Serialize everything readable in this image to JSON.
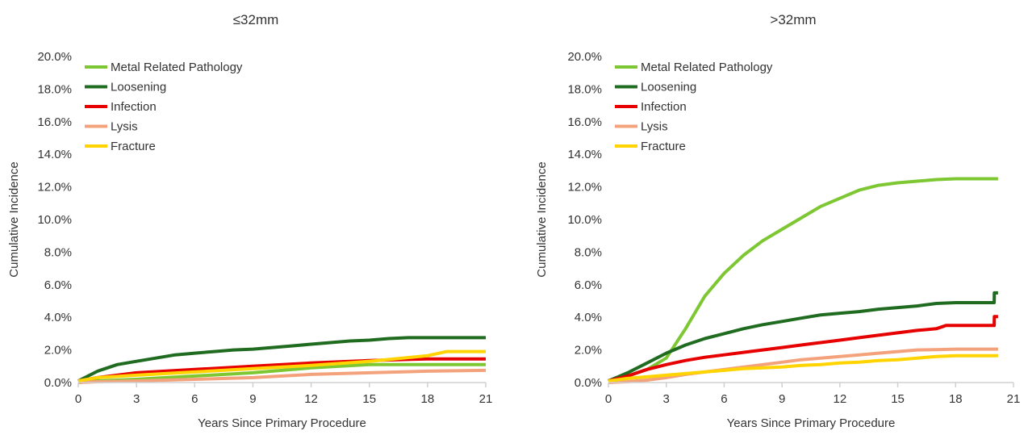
{
  "chart_data": [
    {
      "type": "line",
      "title": "≤32mm",
      "xlabel": "Years Since Primary Procedure",
      "ylabel": "Cumulative Incidence",
      "xlim": [
        0,
        21
      ],
      "ylim": [
        0,
        20
      ],
      "xticks": [
        "0",
        "3",
        "6",
        "9",
        "12",
        "15",
        "18",
        "21"
      ],
      "yticks": [
        "0.0%",
        "2.0%",
        "4.0%",
        "6.0%",
        "8.0%",
        "10.0%",
        "12.0%",
        "14.0%",
        "16.0%",
        "18.0%",
        "20.0%"
      ],
      "grid": false,
      "legend": "top-left",
      "series": [
        {
          "name": "Metal Related Pathology",
          "color": "#7DC832",
          "x": [
            0,
            1,
            3,
            6,
            9,
            12,
            15,
            18,
            21
          ],
          "y": [
            0.0,
            0.1,
            0.2,
            0.4,
            0.6,
            0.9,
            1.1,
            1.1,
            1.1
          ]
        },
        {
          "name": "Loosening",
          "color": "#1F6B1F",
          "x": [
            0,
            1,
            2,
            3,
            4,
            5,
            6,
            7,
            8,
            9,
            10,
            11,
            12,
            13,
            14,
            15,
            16,
            17,
            18,
            19,
            20,
            21
          ],
          "y": [
            0.1,
            0.7,
            1.1,
            1.3,
            1.5,
            1.7,
            1.8,
            1.9,
            2.0,
            2.05,
            2.15,
            2.25,
            2.35,
            2.45,
            2.55,
            2.6,
            2.7,
            2.75,
            2.75,
            2.75,
            2.75,
            2.75
          ]
        },
        {
          "name": "Infection",
          "color": "#E60000",
          "x": [
            0,
            1,
            3,
            6,
            9,
            12,
            15,
            18,
            21
          ],
          "y": [
            0.1,
            0.3,
            0.6,
            0.8,
            1.0,
            1.2,
            1.35,
            1.45,
            1.45
          ]
        },
        {
          "name": "Lysis",
          "color": "#F4A27C",
          "x": [
            0,
            1,
            3,
            6,
            9,
            12,
            15,
            18,
            21
          ],
          "y": [
            0.0,
            0.05,
            0.1,
            0.2,
            0.3,
            0.5,
            0.6,
            0.7,
            0.75
          ]
        },
        {
          "name": "Fracture",
          "color": "#FFD400",
          "x": [
            0,
            1,
            3,
            6,
            9,
            12,
            15,
            18,
            19,
            21
          ],
          "y": [
            0.1,
            0.3,
            0.45,
            0.65,
            0.85,
            1.05,
            1.3,
            1.65,
            1.9,
            1.9
          ]
        }
      ]
    },
    {
      "type": "line",
      "title": ">32mm",
      "xlabel": "Years Since Primary Procedure",
      "ylabel": "Cumulative Incidence",
      "xlim": [
        0,
        21
      ],
      "ylim": [
        0,
        20
      ],
      "xticks": [
        "0",
        "3",
        "6",
        "9",
        "12",
        "15",
        "18",
        "21"
      ],
      "yticks": [
        "0.0%",
        "2.0%",
        "4.0%",
        "6.0%",
        "8.0%",
        "10.0%",
        "12.0%",
        "14.0%",
        "16.0%",
        "18.0%",
        "20.0%"
      ],
      "grid": false,
      "legend": "top-left",
      "series": [
        {
          "name": "Metal Related Pathology",
          "color": "#7DC832",
          "x": [
            0,
            1,
            2,
            3,
            4,
            5,
            6,
            7,
            8,
            9,
            10,
            11,
            12,
            13,
            14,
            15,
            16,
            17,
            18,
            19,
            20,
            20.2
          ],
          "y": [
            0.1,
            0.4,
            0.8,
            1.5,
            3.3,
            5.3,
            6.7,
            7.8,
            8.7,
            9.4,
            10.1,
            10.8,
            11.3,
            11.8,
            12.1,
            12.25,
            12.35,
            12.45,
            12.5,
            12.5,
            12.5,
            12.5
          ]
        },
        {
          "name": "Loosening",
          "color": "#1F6B1F",
          "x": [
            0,
            1,
            2,
            3,
            4,
            5,
            6,
            7,
            8,
            9,
            10,
            11,
            12,
            13,
            14,
            15,
            16,
            17,
            18,
            19,
            20,
            20.01,
            20.2
          ],
          "y": [
            0.1,
            0.6,
            1.2,
            1.8,
            2.3,
            2.7,
            3.0,
            3.3,
            3.55,
            3.75,
            3.95,
            4.15,
            4.25,
            4.35,
            4.5,
            4.6,
            4.7,
            4.85,
            4.9,
            4.9,
            4.9,
            5.5,
            5.5
          ]
        },
        {
          "name": "Infection",
          "color": "#E60000",
          "x": [
            0,
            1,
            2,
            3,
            4,
            5,
            6,
            7,
            8,
            9,
            10,
            11,
            12,
            13,
            14,
            15,
            16,
            17,
            17.5,
            18,
            20,
            20.01,
            20.2
          ],
          "y": [
            0.1,
            0.4,
            0.8,
            1.1,
            1.35,
            1.55,
            1.7,
            1.85,
            2.0,
            2.15,
            2.3,
            2.45,
            2.6,
            2.75,
            2.9,
            3.05,
            3.2,
            3.3,
            3.5,
            3.5,
            3.5,
            4.05,
            4.05
          ]
        },
        {
          "name": "Lysis",
          "color": "#F4A27C",
          "x": [
            0,
            1,
            2,
            3,
            4,
            5,
            6,
            7,
            8,
            9,
            10,
            11,
            12,
            13,
            14,
            15,
            16,
            17,
            18,
            19,
            20.2
          ],
          "y": [
            0.0,
            0.05,
            0.15,
            0.3,
            0.5,
            0.65,
            0.8,
            0.95,
            1.1,
            1.25,
            1.4,
            1.5,
            1.6,
            1.7,
            1.8,
            1.9,
            2.0,
            2.02,
            2.05,
            2.05,
            2.05
          ]
        },
        {
          "name": "Fracture",
          "color": "#FFD400",
          "x": [
            0,
            1,
            2,
            3,
            4,
            5,
            6,
            7,
            8,
            9,
            10,
            11,
            12,
            13,
            14,
            15,
            16,
            17,
            18,
            19,
            20.2
          ],
          "y": [
            0.1,
            0.25,
            0.35,
            0.45,
            0.55,
            0.65,
            0.75,
            0.85,
            0.9,
            0.95,
            1.05,
            1.1,
            1.2,
            1.25,
            1.35,
            1.4,
            1.5,
            1.6,
            1.65,
            1.65,
            1.65
          ]
        }
      ]
    }
  ]
}
